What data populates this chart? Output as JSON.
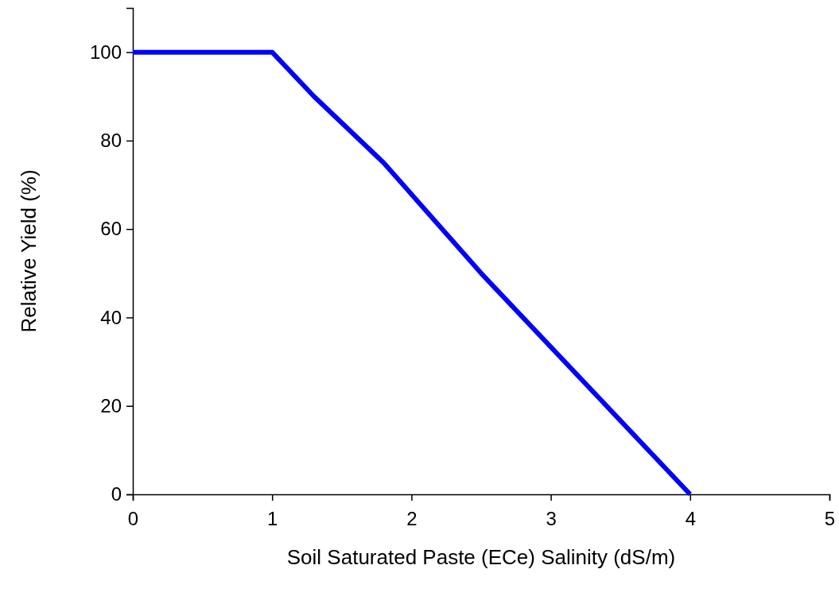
{
  "chart_data": {
    "type": "line",
    "xlabel": "Soil Saturated Paste (ECe) Salinity (dS/m)",
    "ylabel": "Relative Yield (%)",
    "x": [
      0,
      1,
      1.3,
      1.8,
      2.5,
      4
    ],
    "series": [
      {
        "color": "#0000ff",
        "values": [
          100,
          100,
          90,
          75,
          50,
          0
        ]
      }
    ],
    "xlim": [
      0,
      5
    ],
    "xticks": [
      0,
      1,
      2,
      3,
      4,
      5
    ],
    "ylim": [
      0,
      110
    ],
    "yticks": [
      0,
      20,
      40,
      60,
      80,
      100
    ],
    "grid": false,
    "marker": "none",
    "line_style": "solid"
  }
}
